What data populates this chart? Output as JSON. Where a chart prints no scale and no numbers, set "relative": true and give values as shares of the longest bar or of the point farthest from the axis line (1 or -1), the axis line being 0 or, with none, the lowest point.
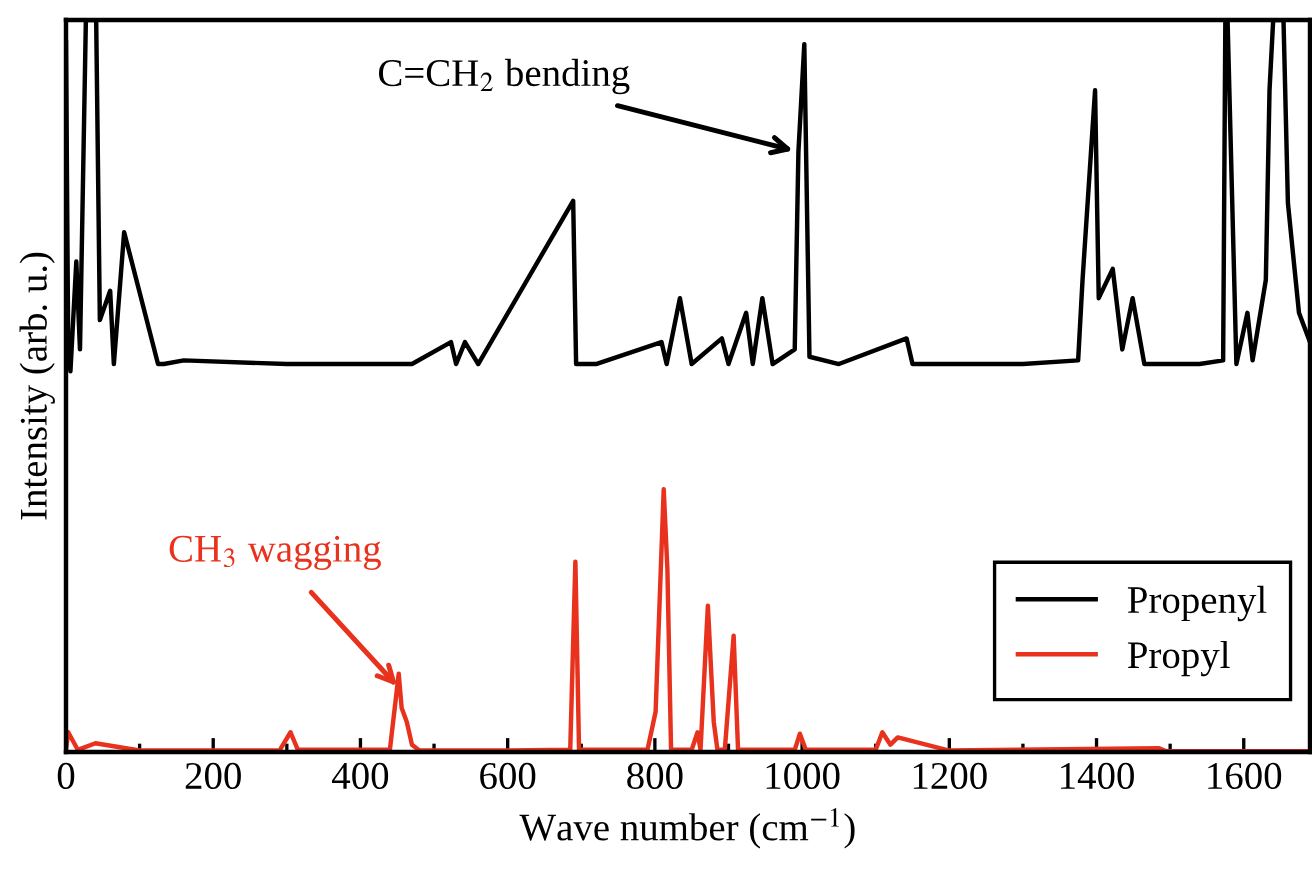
{
  "chart_data": {
    "type": "line",
    "relative": true,
    "xlabel": "Wave number (cm$^{−1}$)",
    "ylabel": "Intensity (arb. u.)",
    "xlim": [
      0,
      1690
    ],
    "xticks": [
      0,
      {
        "value": 100,
        "label": null
      },
      200,
      {
        "value": 300,
        "label": null
      },
      400,
      {
        "value": 500,
        "label": null
      },
      600,
      {
        "value": 700,
        "label": null
      },
      800,
      {
        "value": 900,
        "label": null
      },
      1000,
      {
        "value": 1100,
        "label": null
      },
      1200,
      {
        "value": 1300,
        "label": null
      },
      1400,
      {
        "value": 1500,
        "label": null
      },
      1600
    ],
    "legend": "bottom right",
    "grid": false,
    "line_style": "solid",
    "series": [
      {
        "name": "Propenyl",
        "color": "#000000",
        "x": [
          0,
          3,
          6,
          14,
          19,
          27,
          35,
          41,
          46,
          60,
          65,
          79,
          125,
          133,
          160,
          300,
          470,
          523,
          530,
          542,
          560,
          689,
          693,
          720,
          809,
          816,
          834,
          850,
          891,
          900,
          924,
          933,
          946,
          960,
          990,
          995,
          1003,
          1010,
          1050,
          1142,
          1150,
          1300,
          1375,
          1381,
          1398,
          1403,
          1422,
          1435,
          1449,
          1465,
          1540,
          1572,
          1575,
          1578,
          1590,
          1605,
          1612,
          1630,
          1635,
          1640,
          1654,
          1660,
          1675,
          1690
        ],
        "values": [
          0.97,
          0.55,
          0.52,
          0.67,
          0.55,
          1,
          1,
          1,
          0.59,
          0.63,
          0.53,
          0.71,
          0.53,
          0.53,
          0.535,
          0.53,
          0.53,
          0.56,
          0.53,
          0.56,
          0.53,
          0.753,
          0.53,
          0.53,
          0.56,
          0.53,
          0.62,
          0.53,
          0.565,
          0.53,
          0.6,
          0.53,
          0.62,
          0.53,
          0.55,
          0.82,
          0.967,
          0.54,
          0.53,
          0.565,
          0.53,
          0.53,
          0.535,
          0.645,
          0.904,
          0.62,
          0.66,
          0.55,
          0.62,
          0.53,
          0.53,
          0.535,
          1,
          1,
          0.53,
          0.6,
          0.535,
          0.645,
          0.904,
          1,
          1,
          0.75,
          0.6,
          0.56
        ]
      },
      {
        "name": "Propyl",
        "color": "#e8321e",
        "x": [
          0,
          3,
          16,
          40,
          100,
          290,
          305,
          315,
          440,
          452,
          456,
          463,
          470,
          480,
          600,
          685,
          692,
          697,
          790,
          801,
          812,
          817,
          822,
          850,
          858,
          862,
          872,
          877,
          880,
          885,
          895,
          907,
          913,
          990,
          997,
          1005,
          1100,
          1109,
          1120,
          1130,
          1200,
          1485,
          1495,
          1690
        ],
        "values": [
          0.003,
          0.027,
          0.003,
          0.012,
          0.002,
          0.002,
          0.027,
          0.003,
          0.003,
          0.107,
          0.06,
          0.041,
          0.01,
          0.002,
          0.002,
          0.003,
          0.26,
          0.003,
          0.003,
          0.055,
          0.359,
          0.25,
          0.003,
          0.003,
          0.027,
          0.003,
          0.2,
          0.1,
          0.041,
          0.003,
          0.003,
          0.159,
          0.003,
          0.003,
          0.025,
          0.003,
          0.003,
          0.027,
          0.01,
          0.02,
          0.002,
          0.005,
          0.001,
          0.001
        ]
      }
    ],
    "annotations": [
      {
        "text": "C=CH$_{2}$ bending",
        "x": 995,
        "y": 0.82
      },
      {
        "text": "CH$_{3}$ wagging",
        "x": 450,
        "y": 0.09
      }
    ]
  }
}
